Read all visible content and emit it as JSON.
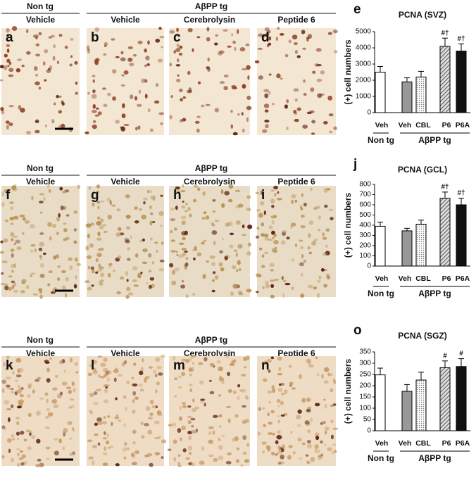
{
  "rows": [
    {
      "groups": [
        "Non tg",
        "AβPP tg"
      ],
      "columns": [
        "Vehicle",
        "Vehicle",
        "Cerebrolysin",
        "Peptide 6"
      ],
      "letters": [
        "a",
        "b",
        "c",
        "d"
      ]
    },
    {
      "groups": [
        "Non tg",
        "AβPP tg"
      ],
      "columns": [
        "Vehicle",
        "Vehicle",
        "Cerebrolysin",
        "Peptide 6"
      ],
      "letters": [
        "f",
        "g",
        "h",
        "i"
      ]
    },
    {
      "groups": [
        "Non tg",
        "AβPP tg"
      ],
      "columns": [
        "Vehicle",
        "Vehicle",
        "Cerebrolysin",
        "Peptide 6"
      ],
      "letters": [
        "k",
        "l",
        "m",
        "n"
      ]
    }
  ],
  "chart_data": [
    {
      "type": "bar",
      "letter": "e",
      "title": "PCNA (SVZ)",
      "y_label": "(+) cell numbers",
      "categories": [
        "Veh",
        "Veh",
        "CBL",
        "P6",
        "P6A"
      ],
      "values": [
        2500,
        1900,
        2200,
        4100,
        3800
      ],
      "errors": [
        350,
        250,
        350,
        500,
        450
      ],
      "fills": [
        "white",
        "gray",
        "dotted",
        "striped",
        "black"
      ],
      "annotations": [
        null,
        null,
        null,
        "#†",
        "#†"
      ],
      "groups": [
        {
          "name": "Non tg",
          "count": 1
        },
        {
          "name": "AβPP tg",
          "count": 4
        }
      ],
      "ylim": [
        0,
        5000
      ],
      "yticks": [
        0,
        1000,
        2000,
        3000,
        4000,
        5000
      ]
    },
    {
      "type": "bar",
      "letter": "j",
      "title": "PCNA (GCL)",
      "y_label": "(+) cell numbers",
      "categories": [
        "Veh",
        "Veh",
        "CBL",
        "P6",
        "P6A"
      ],
      "values": [
        390,
        345,
        410,
        665,
        600
      ],
      "errors": [
        40,
        25,
        40,
        60,
        65
      ],
      "fills": [
        "white",
        "gray",
        "dotted",
        "striped",
        "black"
      ],
      "annotations": [
        null,
        null,
        null,
        "#†",
        "#†"
      ],
      "groups": [
        {
          "name": "Non tg",
          "count": 1
        },
        {
          "name": "AβPP tg",
          "count": 4
        }
      ],
      "ylim": [
        0,
        800
      ],
      "yticks": [
        0,
        100,
        200,
        300,
        400,
        500,
        600,
        700,
        800
      ]
    },
    {
      "type": "bar",
      "letter": "o",
      "title": "PCNA (SGZ)",
      "y_label": "(+) cell numbers",
      "categories": [
        "Veh",
        "Veh",
        "CBL",
        "P6",
        "P6A"
      ],
      "values": [
        248,
        175,
        225,
        280,
        285
      ],
      "errors": [
        30,
        30,
        35,
        30,
        35
      ],
      "fills": [
        "white",
        "gray",
        "dotted",
        "striped",
        "black"
      ],
      "annotations": [
        null,
        null,
        null,
        "#",
        "#"
      ],
      "groups": [
        {
          "name": "Non tg",
          "count": 1
        },
        {
          "name": "AβPP tg",
          "count": 4
        }
      ],
      "ylim": [
        0,
        350
      ],
      "yticks": [
        0,
        50,
        100,
        150,
        200,
        250,
        300,
        350
      ]
    }
  ]
}
